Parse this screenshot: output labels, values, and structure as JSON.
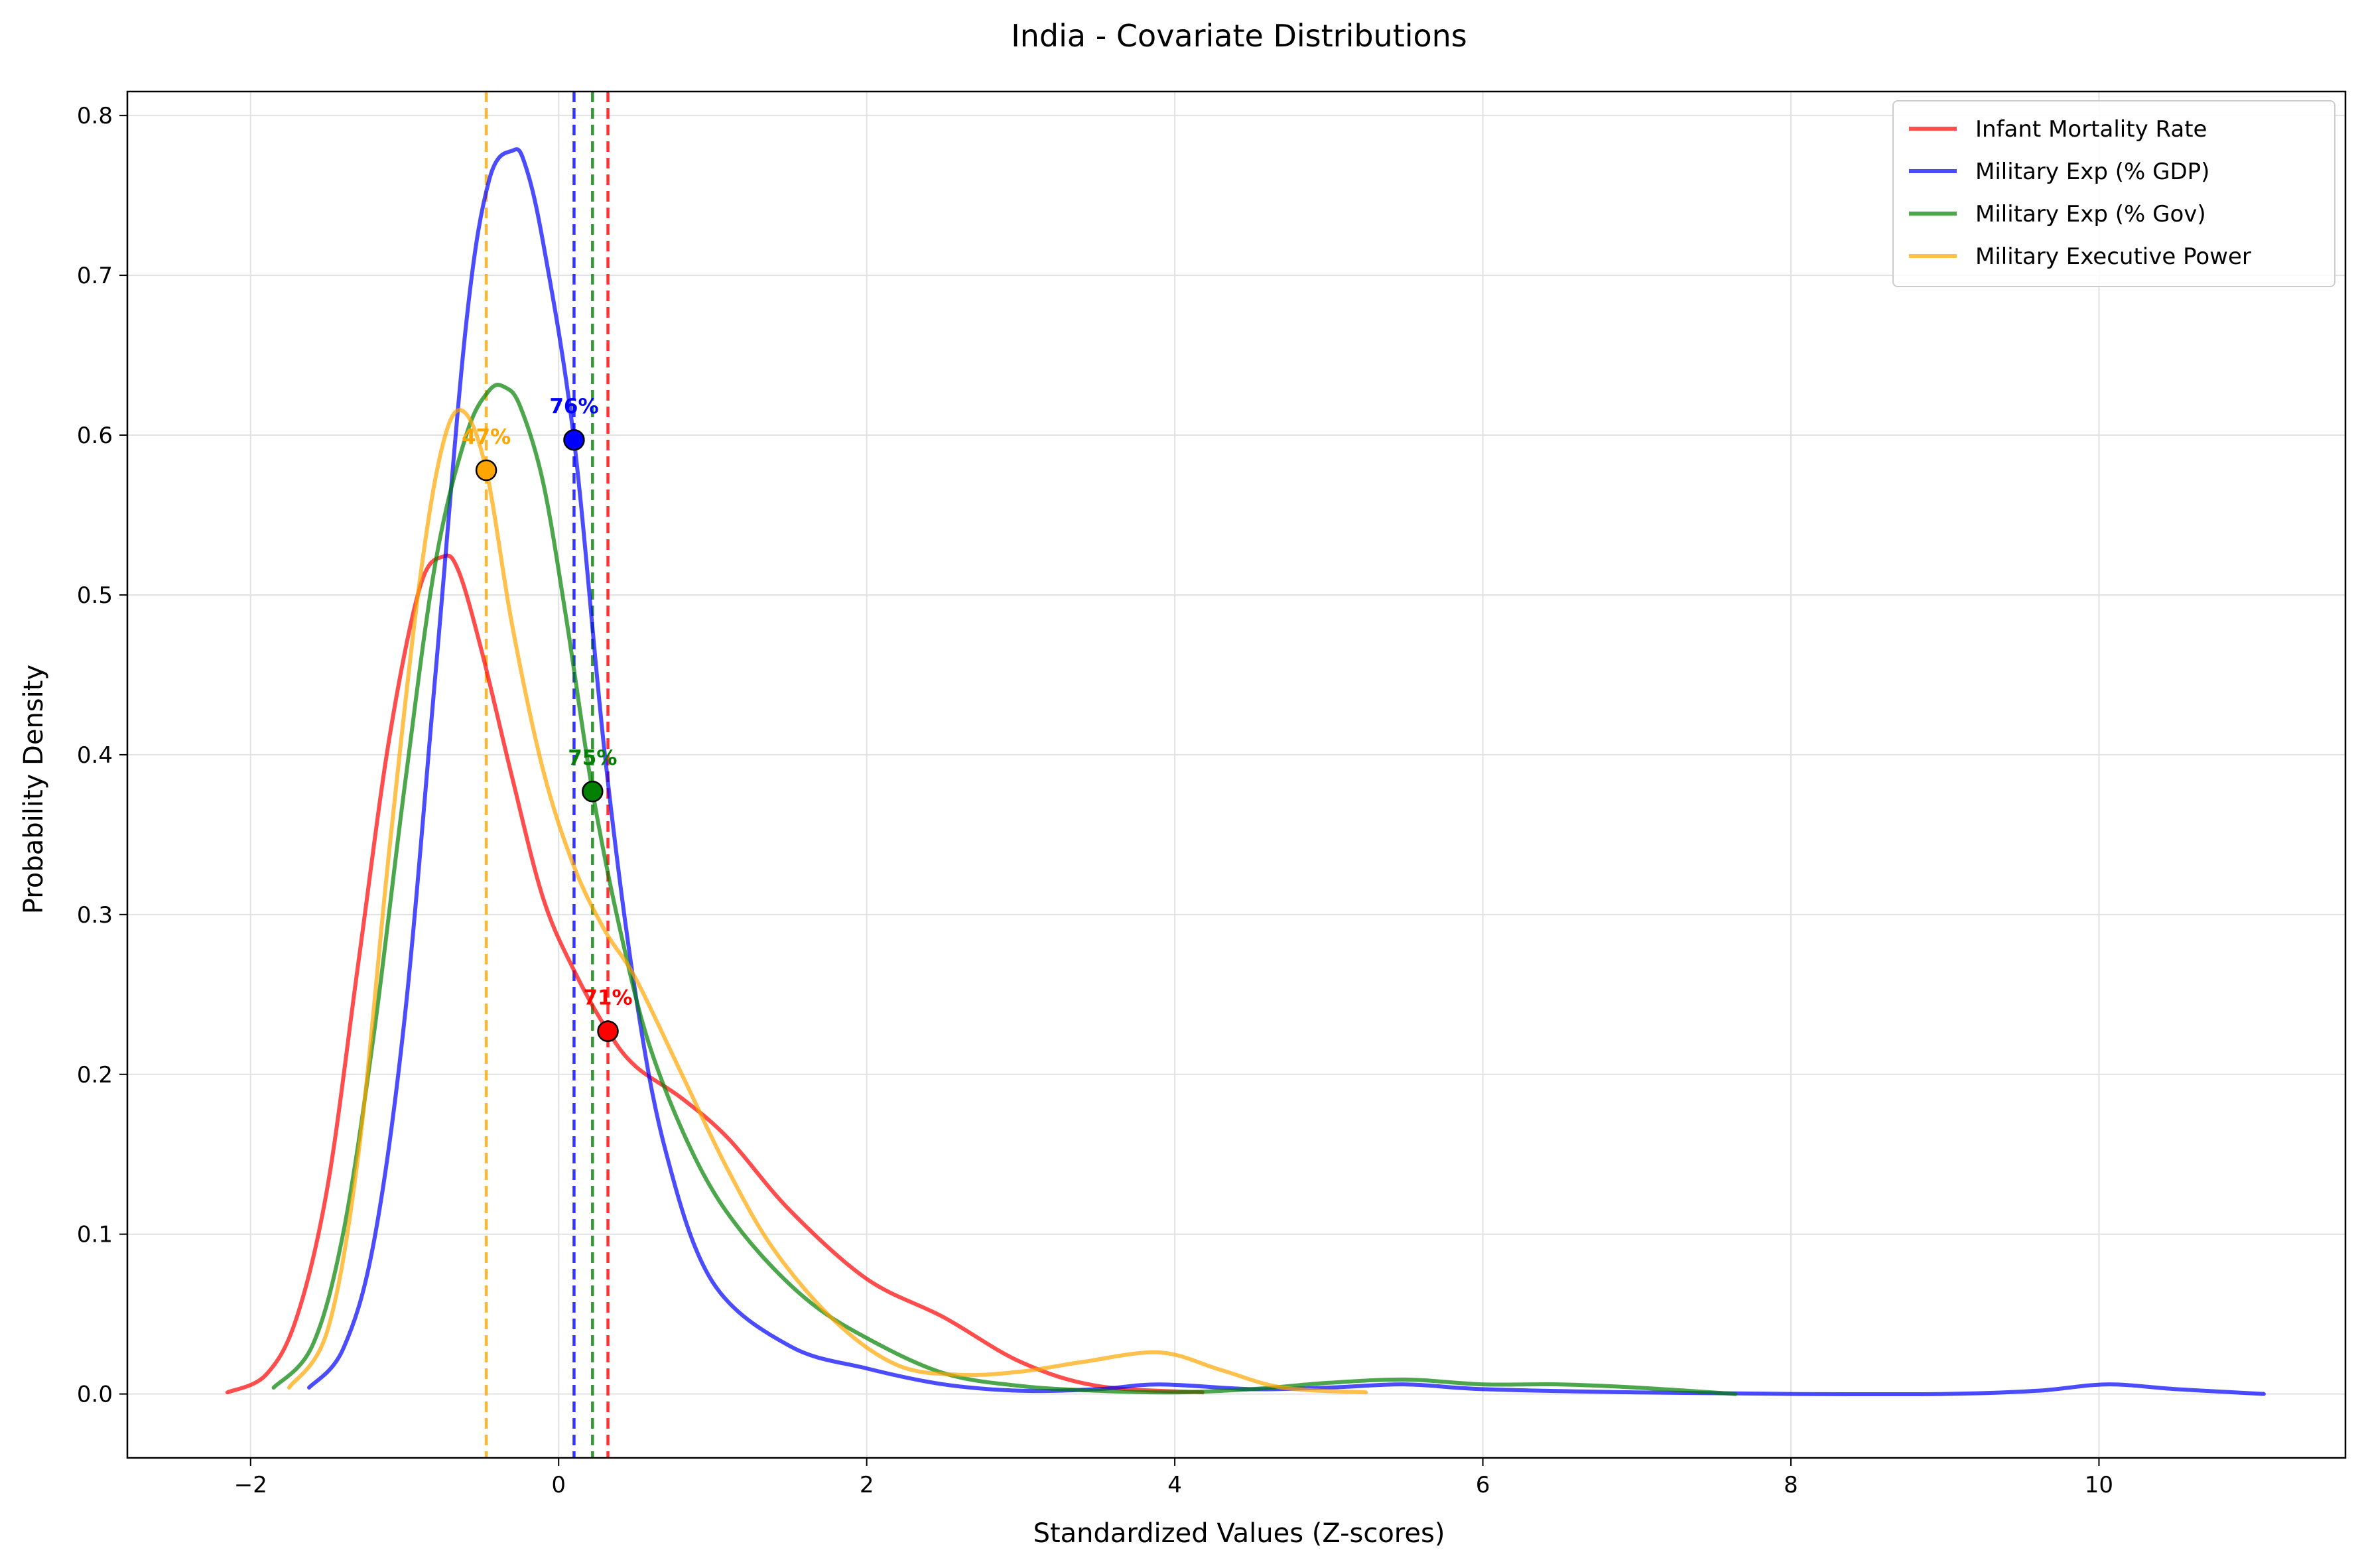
{
  "chart_data": {
    "type": "line",
    "title": "India - Covariate Distributions",
    "xlabel": "Standardized Values (Z-scores)",
    "ylabel": "Probability Density",
    "xlim": [
      -2.8,
      11.6
    ],
    "ylim": [
      -0.04,
      0.815
    ],
    "xticks": [
      -2,
      0,
      2,
      4,
      6,
      8,
      10
    ],
    "xtick_labels": [
      "−2",
      "0",
      "2",
      "4",
      "6",
      "8",
      "10"
    ],
    "yticks": [
      0.0,
      0.1,
      0.2,
      0.3,
      0.4,
      0.5,
      0.6,
      0.7,
      0.8
    ],
    "ytick_labels": [
      "0.0",
      "0.1",
      "0.2",
      "0.3",
      "0.4",
      "0.5",
      "0.6",
      "0.7",
      "0.8"
    ],
    "grid": true,
    "legend_position": "top-right",
    "series": [
      {
        "name": "Infant Mortality Rate",
        "color": "#ff0000",
        "current_value": 0.32,
        "current_density": 0.227,
        "percentile_label": "71%",
        "x": [
          -2.15,
          -1.9,
          -1.7,
          -1.5,
          -1.3,
          -1.1,
          -0.9,
          -0.75,
          -0.65,
          -0.5,
          -0.3,
          -0.1,
          0.1,
          0.32,
          0.5,
          0.8,
          1.1,
          1.5,
          2.0,
          2.5,
          3.0,
          3.5,
          4.18
        ],
        "y": [
          0.001,
          0.012,
          0.048,
          0.13,
          0.27,
          0.41,
          0.505,
          0.524,
          0.515,
          0.465,
          0.385,
          0.31,
          0.265,
          0.227,
          0.205,
          0.185,
          0.16,
          0.115,
          0.072,
          0.048,
          0.02,
          0.005,
          0.001
        ]
      },
      {
        "name": "Military Exp (% GDP)",
        "color": "#0000ff",
        "current_value": 0.1,
        "current_density": 0.597,
        "percentile_label": "76%",
        "x": [
          -1.62,
          -1.4,
          -1.2,
          -1.0,
          -0.8,
          -0.6,
          -0.45,
          -0.3,
          -0.22,
          -0.1,
          0.1,
          0.3,
          0.5,
          0.7,
          1.0,
          1.5,
          2.0,
          2.5,
          3.0,
          3.5,
          3.9,
          4.5,
          5.0,
          5.5,
          6.0,
          7.0,
          8.0,
          9.0,
          9.6,
          10.05,
          10.5,
          11.07
        ],
        "y": [
          0.004,
          0.028,
          0.095,
          0.235,
          0.45,
          0.67,
          0.76,
          0.778,
          0.77,
          0.72,
          0.597,
          0.4,
          0.25,
          0.15,
          0.07,
          0.03,
          0.016,
          0.006,
          0.002,
          0.003,
          0.006,
          0.003,
          0.004,
          0.006,
          0.003,
          0.001,
          0.0,
          0.0,
          0.002,
          0.006,
          0.003,
          0.0
        ]
      },
      {
        "name": "Military Exp (% Gov)",
        "color": "#008000",
        "current_value": 0.22,
        "current_density": 0.377,
        "percentile_label": "75%",
        "x": [
          -1.85,
          -1.6,
          -1.4,
          -1.2,
          -1.0,
          -0.8,
          -0.6,
          -0.45,
          -0.35,
          -0.25,
          -0.1,
          0.05,
          0.22,
          0.4,
          0.6,
          0.9,
          1.2,
          1.6,
          2.0,
          2.5,
          3.0,
          3.5,
          4.0,
          4.5,
          5.0,
          5.5,
          6.0,
          6.5,
          7.0,
          7.64
        ],
        "y": [
          0.004,
          0.03,
          0.1,
          0.225,
          0.38,
          0.52,
          0.6,
          0.628,
          0.63,
          0.618,
          0.57,
          0.485,
          0.377,
          0.29,
          0.215,
          0.145,
          0.1,
          0.06,
          0.035,
          0.013,
          0.005,
          0.002,
          0.001,
          0.003,
          0.007,
          0.009,
          0.006,
          0.006,
          0.004,
          0.0
        ]
      },
      {
        "name": "Military Executive Power",
        "color": "#ffa500",
        "current_value": -0.47,
        "current_density": 0.578,
        "percentile_label": "47%",
        "x": [
          -1.75,
          -1.5,
          -1.3,
          -1.1,
          -0.9,
          -0.75,
          -0.62,
          -0.47,
          -0.3,
          -0.1,
          0.1,
          0.3,
          0.5,
          0.8,
          1.1,
          1.4,
          1.8,
          2.2,
          2.6,
          3.0,
          3.4,
          3.9,
          4.3,
          4.7,
          5.24
        ],
        "y": [
          0.004,
          0.04,
          0.15,
          0.34,
          0.51,
          0.595,
          0.615,
          0.578,
          0.48,
          0.39,
          0.33,
          0.29,
          0.26,
          0.2,
          0.14,
          0.09,
          0.045,
          0.018,
          0.012,
          0.014,
          0.02,
          0.026,
          0.015,
          0.004,
          0.001
        ]
      }
    ]
  }
}
